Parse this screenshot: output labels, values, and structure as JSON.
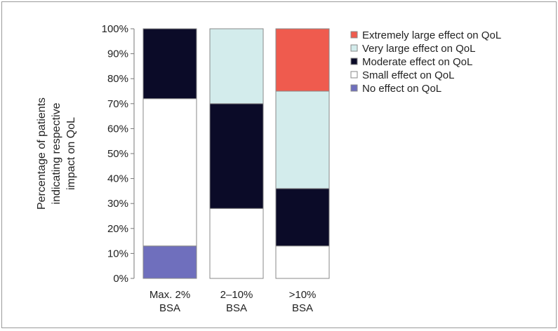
{
  "chart_data": {
    "type": "bar",
    "stacked": true,
    "ylabel_lines": [
      "Percentage of patients",
      "indicating respective",
      "impact on QoL"
    ],
    "categories": [
      {
        "line1": "Max. 2%",
        "line2": "BSA"
      },
      {
        "line1": "2–10%",
        "line2": "BSA"
      },
      {
        "line1": ">10%",
        "line2": "BSA"
      }
    ],
    "yticks": [
      "0%",
      "10%",
      "20%",
      "30%",
      "40%",
      "50%",
      "60%",
      "70%",
      "80%",
      "90%",
      "100%"
    ],
    "ylim": [
      0,
      100
    ],
    "grid": false,
    "legend_position": "top-right",
    "series": [
      {
        "key": "none",
        "name": "No effect on QoL",
        "color": "#6f6fbd",
        "values": [
          13,
          0,
          0
        ]
      },
      {
        "key": "small",
        "name": "Small effect on QoL",
        "color": "#ffffff",
        "values": [
          59,
          28,
          13
        ]
      },
      {
        "key": "moderate",
        "name": "Moderate effect on QoL",
        "color": "#0b0b28",
        "values": [
          28,
          42,
          23
        ]
      },
      {
        "key": "vlarge",
        "name": "Very large effect on QoL",
        "color": "#d3ecec",
        "values": [
          0,
          30,
          39
        ]
      },
      {
        "key": "xlarge",
        "name": "Extremely large effect on QoL",
        "color": "#ef5b4e",
        "values": [
          0,
          0,
          25
        ]
      }
    ],
    "legend_order": [
      "xlarge",
      "vlarge",
      "moderate",
      "small",
      "none"
    ]
  }
}
